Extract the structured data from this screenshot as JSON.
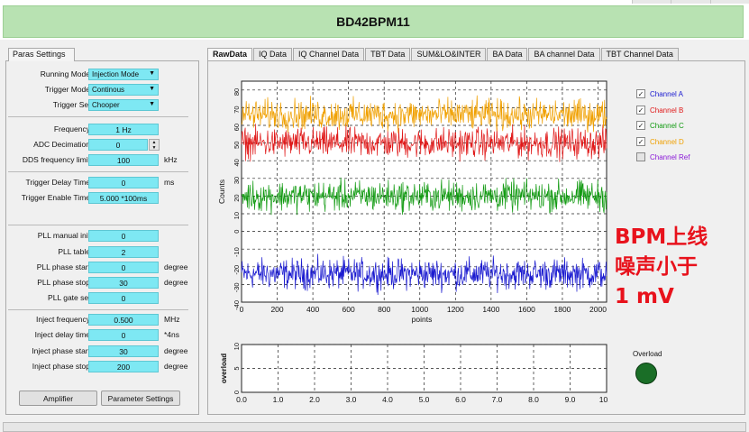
{
  "app": {
    "title": "BD42BPM11"
  },
  "paras": {
    "tab_label": "Paras Settings",
    "running_mode": {
      "label": "Running Mode",
      "value": "Injection Mode"
    },
    "trigger_mode": {
      "label": "Trigger Mode",
      "value": "Continous"
    },
    "trigger_sel": {
      "label": "Trigger Sel",
      "value": "Chooper"
    },
    "frequency": {
      "label": "Frequency",
      "value": "1 Hz"
    },
    "adc_decimation": {
      "label": "ADC Decimation",
      "value": "0"
    },
    "dds_limit": {
      "label": "DDS frequency limit",
      "value": "100",
      "unit": "kHz"
    },
    "trigger_delay": {
      "label": "Trigger Delay Time",
      "value": "0",
      "unit": "ms"
    },
    "trigger_enable": {
      "label": "Trigger Enable Time",
      "value": "5.000  *100ms"
    },
    "pll_manual_init": {
      "label": "PLL manual init",
      "value": "0"
    },
    "pll_table": {
      "label": "PLL table",
      "value": "2"
    },
    "pll_phase_start": {
      "label": "PLL phase start",
      "value": "0",
      "unit": "degree"
    },
    "pll_phase_stop": {
      "label": "PLL phase stop",
      "value": "30",
      "unit": "degree"
    },
    "pll_gate_sel": {
      "label": "PLL gate sel",
      "value": "0"
    },
    "inject_frequency": {
      "label": "Inject frequency",
      "value": "0.500",
      "unit": "MHz"
    },
    "inject_delay": {
      "label": "Inject delay time",
      "value": "0",
      "unit": "*4ns"
    },
    "inject_phase_start": {
      "label": "Inject phase start",
      "value": "30",
      "unit": "degree"
    },
    "inject_phase_stop": {
      "label": "Inject phase stop",
      "value": "200",
      "unit": "degree"
    },
    "amplifier_button": "Amplifier",
    "parameter_button": "Parameter Settings"
  },
  "tabs": [
    "RawData",
    "IQ Data",
    "IQ Channel Data",
    "TBT Data",
    "SUM&LO&INTER",
    "BA Data",
    "BA channel Data",
    "TBT Channel Data"
  ],
  "legend": [
    {
      "name": "Channel A",
      "checked": true,
      "color": "#1a1ad0"
    },
    {
      "name": "Channel B",
      "checked": true,
      "color": "#e01818"
    },
    {
      "name": "Channel C",
      "checked": true,
      "color": "#109a10"
    },
    {
      "name": "Channel D",
      "checked": true,
      "color": "#f0a000"
    },
    {
      "name": "Channel Ref",
      "checked": false,
      "color": "#8a18d8"
    }
  ],
  "annotation": [
    "BPM上线",
    "噪声小于",
    "1 mV"
  ],
  "overload": {
    "label": "Overload",
    "led_color": "#1a6e27"
  },
  "chart_data": [
    {
      "type": "line",
      "ylabel": "Counts",
      "xlabel": "points",
      "xlim": [
        0,
        2048
      ],
      "ylim": [
        -40,
        85
      ],
      "x_ticks": [
        0,
        200,
        400,
        600,
        800,
        1000,
        1200,
        1400,
        1600,
        1800,
        2000
      ],
      "y_ticks": [
        -40,
        -30,
        -20,
        -10,
        0,
        10,
        20,
        30,
        40,
        50,
        60,
        70,
        80
      ],
      "grid": true,
      "series": [
        {
          "name": "Channel A",
          "color": "#1a1ad0",
          "mean": -24,
          "spread": 6
        },
        {
          "name": "Channel B",
          "color": "#e01818",
          "mean": 50,
          "spread": 6
        },
        {
          "name": "Channel C",
          "color": "#109a10",
          "mean": 20,
          "spread": 6
        },
        {
          "name": "Channel D",
          "color": "#f0a000",
          "mean": 66,
          "spread": 6
        }
      ]
    },
    {
      "type": "line",
      "ylabel": "overload",
      "xlim": [
        0,
        10
      ],
      "ylim": [
        0,
        10
      ],
      "x_ticks": [
        "0.0",
        "1.0",
        "2.0",
        "3.0",
        "4.0",
        "5.0",
        "6.0",
        "7.0",
        "8.0",
        "9.0",
        "10.0"
      ],
      "y_ticks": [
        0,
        5,
        10
      ],
      "grid": true
    }
  ]
}
